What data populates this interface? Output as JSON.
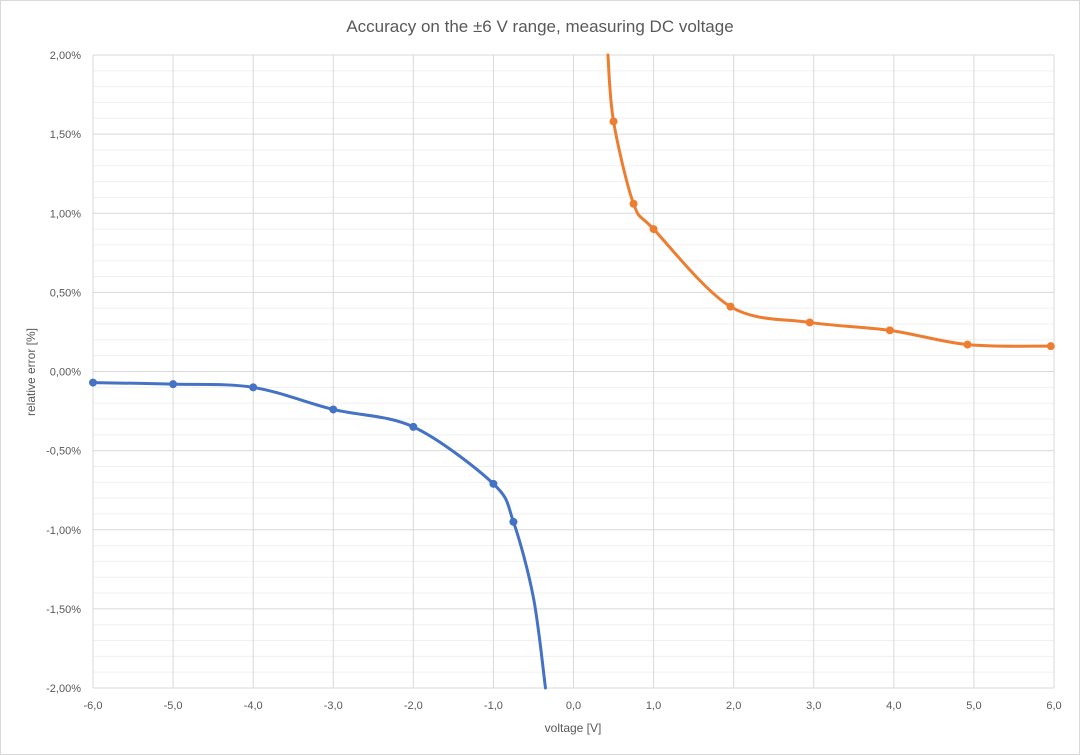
{
  "chart_data": {
    "type": "line",
    "title": "Accuracy on the ±6 V range, measuring DC voltage",
    "xlabel": "voltage [V]",
    "ylabel": "relative error [%]",
    "xlim": [
      -6,
      6
    ],
    "ylim": [
      -2,
      2
    ],
    "x_ticks": [
      -6,
      -5,
      -4,
      -3,
      -2,
      -1,
      0,
      1,
      2,
      3,
      4,
      5,
      6
    ],
    "x_tick_labels": [
      "-6,0",
      "-5,0",
      "-4,0",
      "-3,0",
      "-2,0",
      "-1,0",
      "0,0",
      "1,0",
      "2,0",
      "3,0",
      "4,0",
      "5,0",
      "6,0"
    ],
    "y_ticks": [
      -2,
      -1.5,
      -1,
      -0.5,
      0,
      0.5,
      1,
      1.5,
      2
    ],
    "y_tick_labels": [
      "-2,00%",
      "-1,50%",
      "-1,00%",
      "-0,50%",
      "0,00%",
      "0,50%",
      "1,00%",
      "1,50%",
      "2,00%"
    ],
    "grid": true,
    "legend": "none",
    "series": [
      {
        "color": "#4472c4",
        "x": [
          -6.0,
          -5.0,
          -4.0,
          -3.0,
          -2.0,
          -1.0,
          -0.75,
          -0.5,
          -0.35
        ],
        "y": [
          -0.07,
          -0.08,
          -0.1,
          -0.24,
          -0.35,
          -0.71,
          -0.95,
          -1.43,
          -2.0
        ]
      },
      {
        "color": "#ed7d31",
        "x": [
          0.43,
          0.5,
          0.75,
          1.0,
          1.96,
          2.95,
          3.95,
          4.92,
          5.96
        ],
        "y": [
          2.0,
          1.58,
          1.06,
          0.9,
          0.41,
          0.31,
          0.26,
          0.17,
          0.16
        ]
      }
    ],
    "markers_drawn": [
      7,
      8
    ]
  }
}
